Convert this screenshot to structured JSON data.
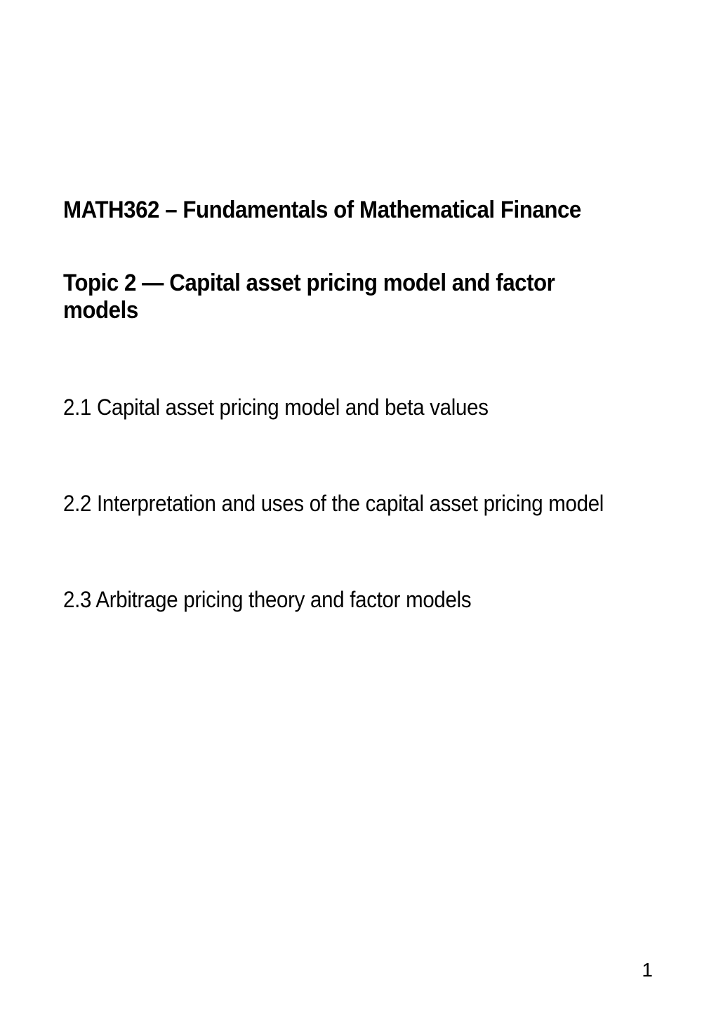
{
  "document": {
    "course_header": "MATH362 – Fundamentals of Mathematical Finance",
    "topic_title": "Topic 2 — Capital asset pricing model and factor models",
    "sections": [
      "2.1 Capital asset pricing model and beta values",
      "2.2 Interpretation and uses of the capital asset pricing model",
      "2.3 Arbitrage pricing theory and factor models"
    ],
    "page_number": "1",
    "text_color": "#000000",
    "background_color": "#ffffff",
    "header_fontsize": 34,
    "header_fontweight": "bold",
    "section_fontsize": 32,
    "section_fontweight": "normal",
    "page_number_fontsize": 28
  }
}
